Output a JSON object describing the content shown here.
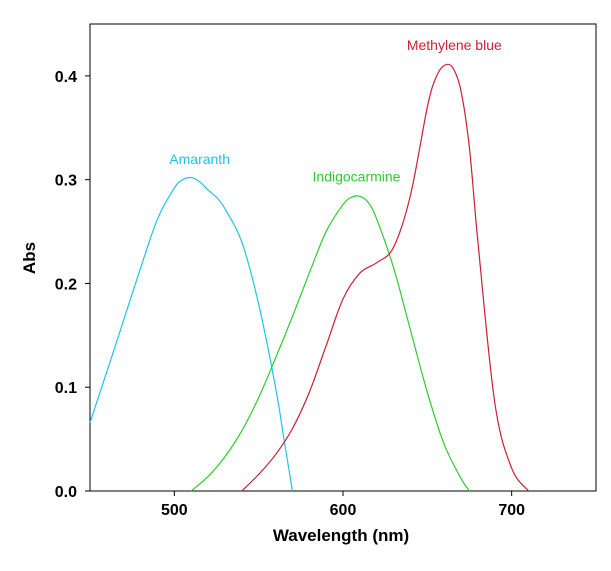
{
  "chart_data": {
    "type": "line",
    "title": "",
    "xlabel": "Wavelength (nm)",
    "ylabel": "Abs",
    "xlim": [
      450,
      750
    ],
    "ylim": [
      0,
      0.45
    ],
    "xticks": [
      500,
      600,
      700
    ],
    "yticks": [
      0.0,
      0.1,
      0.2,
      0.3,
      0.4
    ],
    "ytick_labels": [
      "0.0",
      "0.1",
      "0.2",
      "0.3",
      "0.4"
    ],
    "grid": false,
    "series": [
      {
        "name": "Amaranth",
        "color": "#1fc4e8",
        "x": [
          450,
          460,
          470,
          480,
          490,
          500,
          505,
          510,
          515,
          520,
          525,
          530,
          540,
          550,
          560,
          565,
          570
        ],
        "y": [
          0.066,
          0.115,
          0.165,
          0.215,
          0.262,
          0.292,
          0.3,
          0.302,
          0.298,
          0.29,
          0.283,
          0.272,
          0.24,
          0.18,
          0.1,
          0.05,
          0.0
        ]
      },
      {
        "name": "Indigocarmine",
        "color": "#2ecc2e",
        "x": [
          510,
          520,
          530,
          540,
          550,
          560,
          570,
          580,
          590,
          600,
          605,
          610,
          615,
          620,
          630,
          640,
          650,
          660,
          670,
          675
        ],
        "y": [
          0.0,
          0.014,
          0.033,
          0.058,
          0.09,
          0.128,
          0.168,
          0.21,
          0.25,
          0.276,
          0.283,
          0.284,
          0.278,
          0.262,
          0.215,
          0.155,
          0.095,
          0.045,
          0.012,
          0.0
        ]
      },
      {
        "name": "Methylene blue",
        "color": "#cc1f30",
        "x": [
          540,
          550,
          560,
          570,
          580,
          590,
          600,
          610,
          620,
          630,
          640,
          650,
          655,
          660,
          665,
          670,
          675,
          680,
          690,
          700,
          710
        ],
        "y": [
          0.0,
          0.016,
          0.035,
          0.06,
          0.095,
          0.14,
          0.185,
          0.21,
          0.22,
          0.235,
          0.285,
          0.37,
          0.398,
          0.41,
          0.408,
          0.385,
          0.33,
          0.24,
          0.085,
          0.022,
          0.0
        ]
      }
    ],
    "annotations": [
      {
        "text": "Amaranth",
        "x": 515,
        "y": 0.315,
        "series": 0
      },
      {
        "text": "Indigocarmine",
        "x": 608,
        "y": 0.298,
        "series": 1
      },
      {
        "text": "Methylene blue",
        "x": 666,
        "y": 0.425,
        "series": 2
      }
    ]
  }
}
